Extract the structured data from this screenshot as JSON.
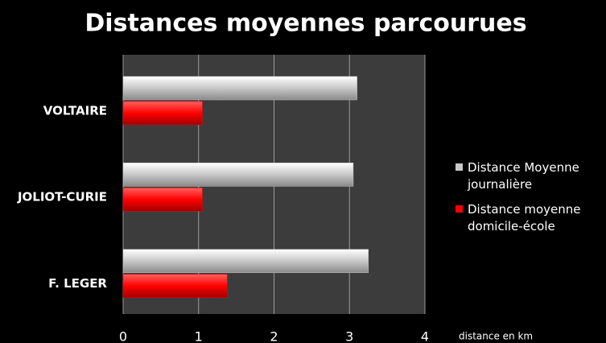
{
  "chart_data": {
    "type": "hbar",
    "title": "Distances moyennes parcourues",
    "categories": [
      "VOLTAIRE",
      "JOLIOT-CURIE",
      "F. LEGER"
    ],
    "series": [
      {
        "name": "Distance Moyenne journalière",
        "color": "#c8c8c8",
        "values": [
          3.1,
          3.05,
          3.25
        ]
      },
      {
        "name": "Distance moyenne domicile-école",
        "color": "#ff0000",
        "values": [
          1.05,
          1.05,
          1.38
        ]
      }
    ],
    "xlabel": "distance en km",
    "xlim": [
      0,
      4
    ],
    "xticks": [
      0,
      1,
      2,
      3,
      4
    ],
    "grid": true,
    "legend": "right"
  }
}
